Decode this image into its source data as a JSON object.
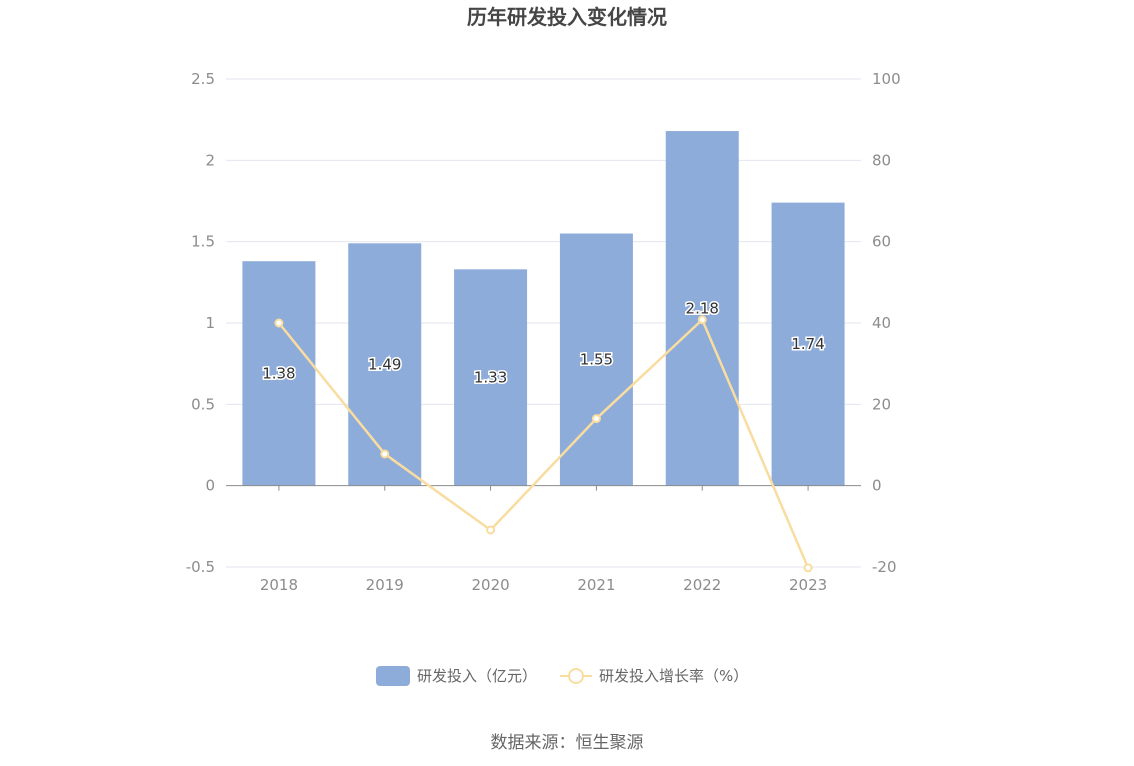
{
  "chart_data": {
    "type": "bar",
    "title": "历年研发投入变化情况",
    "categories": [
      "2018",
      "2019",
      "2020",
      "2021",
      "2022",
      "2023"
    ],
    "series": [
      {
        "name": "研发投入（亿元）",
        "type": "bar",
        "axis": "left",
        "values": [
          1.38,
          1.49,
          1.33,
          1.55,
          2.18,
          1.74
        ],
        "labels": [
          "1.38",
          "1.49",
          "1.33",
          "1.55",
          "2.18",
          "1.74"
        ]
      },
      {
        "name": "研发投入增长率（%）",
        "type": "line",
        "axis": "right",
        "values": [
          40,
          7.8,
          -10.9,
          16.5,
          40.8,
          -20.2
        ]
      }
    ],
    "y_left": {
      "min": -0.5,
      "max": 2.5,
      "ticks": [
        "-0.5",
        "0",
        "0.5",
        "1",
        "1.5",
        "2",
        "2.5"
      ]
    },
    "y_right": {
      "min": -20,
      "max": 100,
      "ticks": [
        "-20",
        "0",
        "20",
        "40",
        "60",
        "80",
        "100"
      ]
    },
    "grid": true,
    "legend_position": "bottom",
    "colors": {
      "bar": "#8eacd9",
      "line": "#f9dca0",
      "grid": "#e2e6f0",
      "axis": "#8c8c8c"
    }
  },
  "source": "数据来源：恒生聚源"
}
